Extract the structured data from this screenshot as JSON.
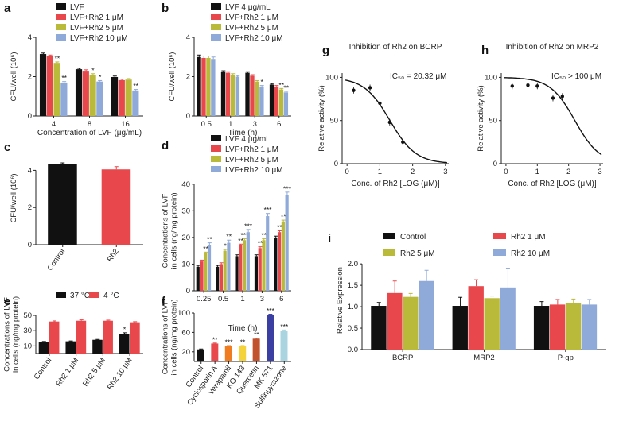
{
  "colors": {
    "black": "#111111",
    "red": "#e8474c",
    "olive": "#b9b93a",
    "blue": "#8fa9d8",
    "orange": "#f07c22",
    "yellow": "#f3d23a",
    "brown": "#c2512d",
    "navy": "#3c3fa2",
    "lightblue": "#a9d4e0"
  },
  "chart_data": [
    {
      "id": "a",
      "panel": "a",
      "type": "bar",
      "ylabel": "CFU/well (10⁶)",
      "xlabel": "Concentration of LVF (μg/mL)",
      "yticks": [
        0,
        2,
        4
      ],
      "ylim": [
        0,
        4
      ],
      "categories": [
        "4",
        "8",
        "16"
      ],
      "legend": [
        "LVF",
        "LVF+Rh2  1 μM",
        "LVF+Rh2  5 μM",
        "LVF+Rh2  10 μM"
      ],
      "series": [
        {
          "name": "LVF",
          "color": "black",
          "values": [
            3.15,
            2.38,
            1.98
          ],
          "err": [
            0.05,
            0.05,
            0.05
          ],
          "sig": [
            "",
            "",
            ""
          ]
        },
        {
          "name": "LVF+Rh2 1 μM",
          "color": "red",
          "values": [
            3.05,
            2.3,
            1.82
          ],
          "err": [
            0.05,
            0.05,
            0.05
          ],
          "sig": [
            "",
            "",
            ""
          ]
        },
        {
          "name": "LVF+Rh2 5 μM",
          "color": "olive",
          "values": [
            2.7,
            2.1,
            1.85
          ],
          "err": [
            0.05,
            0.05,
            0.05
          ],
          "sig": [
            "**",
            "*",
            ""
          ]
        },
        {
          "name": "LVF+Rh2 10 μM",
          "color": "blue",
          "values": [
            1.7,
            1.75,
            1.3
          ],
          "err": [
            0.05,
            0.05,
            0.05
          ],
          "sig": [
            "**",
            "*",
            "**"
          ]
        }
      ]
    },
    {
      "id": "b",
      "panel": "b",
      "type": "bar",
      "ylabel": "CFU/well (10⁶)",
      "xlabel": "Time (h)",
      "yticks": [
        0,
        2,
        4
      ],
      "ylim": [
        0,
        4
      ],
      "categories": [
        "0.5",
        "1",
        "3",
        "6"
      ],
      "legend": [
        "LVF  4 μg/mL",
        "LVF+Rh2  1 μM",
        "LVF+Rh2  5 μM",
        "LVF+Rh2  10 μM"
      ],
      "series": [
        {
          "name": "LVF 4 μg/mL",
          "color": "black",
          "values": [
            3.0,
            2.25,
            2.2,
            1.6
          ],
          "err": [
            0.1,
            0.05,
            0.05,
            0.05
          ],
          "sig": [
            "",
            "",
            "",
            ""
          ]
        },
        {
          "name": "LVF+Rh2 1 μM",
          "color": "red",
          "values": [
            2.95,
            2.2,
            2.05,
            1.5
          ],
          "err": [
            0.1,
            0.05,
            0.05,
            0.05
          ],
          "sig": [
            "",
            "",
            "",
            ""
          ]
        },
        {
          "name": "LVF+Rh2 5 μM",
          "color": "olive",
          "values": [
            2.95,
            2.1,
            1.75,
            1.35
          ],
          "err": [
            0.1,
            0.05,
            0.05,
            0.05
          ],
          "sig": [
            "",
            "",
            "",
            "**"
          ]
        },
        {
          "name": "LVF+Rh2 10 μM",
          "color": "blue",
          "values": [
            2.9,
            2.0,
            1.5,
            1.2
          ],
          "err": [
            0.1,
            0.05,
            0.05,
            0.05
          ],
          "sig": [
            "",
            "",
            "*",
            "**"
          ]
        }
      ]
    },
    {
      "id": "c",
      "panel": "c",
      "type": "bar",
      "ylabel": "CFU/well (10⁶)",
      "xlabel": "",
      "yticks": [
        0,
        2,
        4
      ],
      "ylim": [
        0,
        5
      ],
      "categories": [
        "Control",
        "Rh2"
      ],
      "rotate": true,
      "series": [
        {
          "name": "value",
          "colors": [
            "black",
            "red"
          ],
          "values": [
            4.35,
            4.05
          ],
          "err": [
            0.05,
            0.15
          ],
          "sig": [
            "",
            ""
          ]
        }
      ]
    },
    {
      "id": "d",
      "panel": "d",
      "type": "bar",
      "ylabel": "Concentrations of LVF|in cells (ng/mg protein)",
      "xlabel": "Time (h)",
      "yticks": [
        0,
        10,
        20,
        30,
        40
      ],
      "ylim": [
        0,
        45
      ],
      "categories": [
        "0.25",
        "0.5",
        "1",
        "3",
        "6"
      ],
      "legend": [
        "LVF  4 μg/mL",
        "LVF+Rh2  1 μM",
        "LVF+Rh2  5 μM",
        "LVF+Rh2  10 μM"
      ],
      "series": [
        {
          "name": "LVF 4 μg/mL",
          "color": "black",
          "values": [
            9,
            9,
            13,
            13,
            20
          ],
          "err": [
            0.5,
            0.5,
            0.5,
            0.5,
            0.5
          ],
          "sig": [
            "",
            "",
            "",
            "",
            ""
          ]
        },
        {
          "name": "LVF+Rh2 1 μM",
          "color": "red",
          "values": [
            11,
            10,
            17,
            16,
            22
          ],
          "err": [
            0.5,
            0.5,
            0.5,
            0.5,
            0.5
          ],
          "sig": [
            "",
            "",
            "**",
            "**",
            "**"
          ]
        },
        {
          "name": "LVF+Rh2 5 μM",
          "color": "olive",
          "values": [
            14,
            15,
            19,
            19,
            26
          ],
          "err": [
            0.5,
            0.5,
            0.5,
            0.5,
            0.5
          ],
          "sig": [
            "**",
            "*",
            "***",
            "**",
            "**"
          ]
        },
        {
          "name": "LVF+Rh2 10 μM",
          "color": "blue",
          "values": [
            17,
            18,
            22,
            28,
            36
          ],
          "err": [
            1,
            1,
            1,
            1,
            1
          ],
          "sig": [
            "**",
            "**",
            "***",
            "***",
            "***"
          ]
        }
      ]
    },
    {
      "id": "e",
      "panel": "e",
      "type": "bar",
      "ylabel": "Concentrations of LVF|in cells (ng/mg protein)",
      "xlabel": "",
      "yticks": [
        10,
        30,
        50
      ],
      "ylim": [
        0,
        50
      ],
      "categories": [
        "Control",
        "Rh2 1 μM",
        "Rh2 5 μM",
        "Rh2 10 μM"
      ],
      "rotate": true,
      "legend": [
        "37 °C",
        "4 °C"
      ],
      "series": [
        {
          "name": "37 °C",
          "color": "black",
          "values": [
            15,
            16,
            18,
            26
          ],
          "err": [
            0.8,
            0.5,
            0.5,
            1.2
          ],
          "sig": [
            "",
            "",
            "",
            "*"
          ]
        },
        {
          "name": "4 °C",
          "color": "red",
          "values": [
            42,
            43,
            43,
            41
          ],
          "err": [
            0.8,
            1.2,
            0.8,
            0.8
          ],
          "sig": [
            "",
            "",
            "",
            ""
          ]
        }
      ]
    },
    {
      "id": "f",
      "panel": "f",
      "type": "bar",
      "ylabel": "Concentrations of LVF|in cells (ng/mg protein)",
      "xlabel": "",
      "yticks": [
        20,
        60,
        100
      ],
      "ylim": [
        0,
        100
      ],
      "categories": [
        "Control",
        "Cyclosporin A",
        "Verapamil",
        "KO 143",
        "Quercetin",
        "MK 571",
        "Sulfinpyrazone"
      ],
      "rotate": true,
      "series": [
        {
          "name": "value",
          "colors": [
            "black",
            "red",
            "orange",
            "yellow",
            "brown",
            "navy",
            "lightblue"
          ],
          "values": [
            25,
            37,
            32,
            32,
            47,
            96,
            63
          ],
          "err": [
            0.8,
            1,
            0.8,
            1,
            1,
            1.5,
            2
          ],
          "sig": [
            "",
            "**",
            "***",
            "**",
            "**",
            "***",
            "***"
          ]
        }
      ]
    },
    {
      "id": "g",
      "panel": "g",
      "type": "scatter",
      "title": "Inhibition of Rh2 on BCRP",
      "annotation": "IC₅₀ = 20.32 μM",
      "ylabel": "Relative activity (%)",
      "xlabel": "Conc. of Rh2 [LOG (μM)]",
      "xticks": [
        0,
        1,
        2,
        3
      ],
      "yticks": [
        0,
        50,
        100
      ],
      "xlim": [
        -0.15,
        3.1
      ],
      "ylim": [
        0,
        105
      ],
      "ic50_log": 1.308,
      "points": [
        {
          "x": 0.2,
          "y": 85
        },
        {
          "x": 0.7,
          "y": 88
        },
        {
          "x": 1.0,
          "y": 70
        },
        {
          "x": 1.3,
          "y": 48
        },
        {
          "x": 1.7,
          "y": 25
        }
      ]
    },
    {
      "id": "h",
      "panel": "h",
      "type": "scatter",
      "title": "Inhibition of Rh2 on MRP2",
      "annotation": "IC₅₀ > 100 μM",
      "ylabel": "Relative activity (%)",
      "xlabel": "Conc. of Rh2 [LOG (μM)]",
      "xticks": [
        0,
        1,
        2,
        3
      ],
      "yticks": [
        0,
        50,
        100
      ],
      "xlim": [
        -0.15,
        3.1
      ],
      "ylim": [
        0,
        105
      ],
      "ic50_log": 2.2,
      "points": [
        {
          "x": 0.2,
          "y": 90
        },
        {
          "x": 0.7,
          "y": 91
        },
        {
          "x": 1.0,
          "y": 90
        },
        {
          "x": 1.5,
          "y": 76
        },
        {
          "x": 1.8,
          "y": 78
        }
      ]
    },
    {
      "id": "i",
      "panel": "i",
      "type": "bar",
      "ylabel": "Relative Expression",
      "xlabel": "",
      "yticks": [
        0.0,
        0.5,
        1.0,
        1.5,
        2.0
      ],
      "ylim": [
        0,
        2.3
      ],
      "categories": [
        "BCRP",
        "MRP2",
        "P-gp"
      ],
      "legend": [
        "Control",
        "Rh2 1  μM",
        "Rh2 5  μM",
        "Rh2 10  μM"
      ],
      "series": [
        {
          "name": "Control",
          "color": "black",
          "values": [
            1.02,
            1.02,
            1.02
          ],
          "err": [
            0.08,
            0.2,
            0.1
          ],
          "sig": [
            "",
            "",
            ""
          ]
        },
        {
          "name": "Rh2 1 μM",
          "color": "red",
          "values": [
            1.32,
            1.48,
            1.05
          ],
          "err": [
            0.28,
            0.15,
            0.12
          ],
          "sig": [
            "",
            "",
            ""
          ]
        },
        {
          "name": "Rh2 5 μM",
          "color": "olive",
          "values": [
            1.23,
            1.2,
            1.08
          ],
          "err": [
            0.08,
            0.05,
            0.1
          ],
          "sig": [
            "",
            "",
            ""
          ]
        },
        {
          "name": "Rh2 10 μM",
          "color": "blue",
          "values": [
            1.6,
            1.45,
            1.05
          ],
          "err": [
            0.25,
            0.45,
            0.12
          ],
          "sig": [
            "",
            "",
            ""
          ]
        }
      ]
    }
  ]
}
